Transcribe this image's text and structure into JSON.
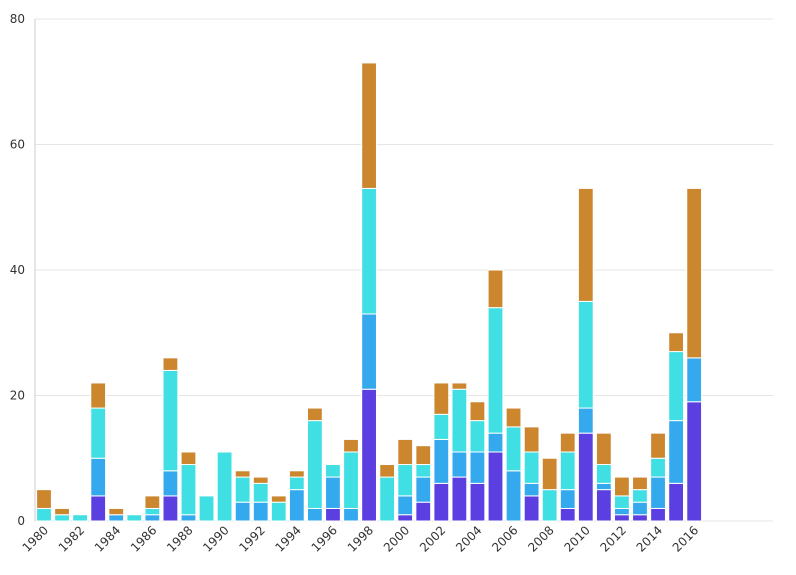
{
  "chart_data": {
    "type": "bar",
    "stacked": true,
    "categories": [
      "1980",
      "1981",
      "1982",
      "1983",
      "1984",
      "1985",
      "1986",
      "1987",
      "1988",
      "1989",
      "1990",
      "1991",
      "1992",
      "1993",
      "1994",
      "1995",
      "1996",
      "1997",
      "1998",
      "1999",
      "2000",
      "2001",
      "2002",
      "2003",
      "2004",
      "2005",
      "2006",
      "2007",
      "2008",
      "2009",
      "2010",
      "2011",
      "2012",
      "2013",
      "2014",
      "2015",
      "2016"
    ],
    "x_tick_labels": [
      "1980",
      "1982",
      "1984",
      "1986",
      "1988",
      "1990",
      "1992",
      "1994",
      "1996",
      "1998",
      "2000",
      "2002",
      "2004",
      "2006",
      "2008",
      "2010",
      "2012",
      "2014",
      "2016"
    ],
    "series": [
      {
        "color": "#5b3fe0",
        "values": [
          0,
          0,
          0,
          4,
          0,
          0,
          0,
          4,
          0,
          0,
          0,
          0,
          0,
          0,
          0,
          0,
          2,
          0,
          21,
          0,
          1,
          3,
          6,
          7,
          6,
          11,
          0,
          4,
          0,
          2,
          14,
          5,
          1,
          1,
          2,
          6,
          19
        ]
      },
      {
        "color": "#35a9ee",
        "values": [
          0,
          0,
          0,
          6,
          1,
          0,
          1,
          4,
          1,
          0,
          0,
          3,
          3,
          0,
          5,
          2,
          5,
          2,
          12,
          0,
          3,
          4,
          7,
          4,
          5,
          3,
          8,
          2,
          0,
          3,
          4,
          1,
          1,
          2,
          5,
          10,
          7
        ]
      },
      {
        "color": "#40dfe3",
        "values": [
          2,
          1,
          1,
          8,
          0,
          1,
          1,
          16,
          8,
          4,
          11,
          4,
          3,
          3,
          2,
          14,
          2,
          9,
          20,
          7,
          5,
          2,
          4,
          10,
          5,
          20,
          7,
          5,
          5,
          6,
          17,
          3,
          2,
          2,
          3,
          11,
          0
        ]
      },
      {
        "color": "#cb862e",
        "values": [
          3,
          1,
          0,
          4,
          1,
          0,
          2,
          2,
          2,
          0,
          0,
          1,
          1,
          1,
          1,
          2,
          0,
          2,
          20,
          2,
          4,
          3,
          5,
          1,
          3,
          6,
          3,
          4,
          5,
          3,
          18,
          5,
          3,
          2,
          4,
          3,
          27
        ]
      }
    ],
    "ylim": [
      0,
      80
    ],
    "yticks": [
      0,
      20,
      40,
      60,
      80
    ],
    "grid": true,
    "legend": "none"
  }
}
